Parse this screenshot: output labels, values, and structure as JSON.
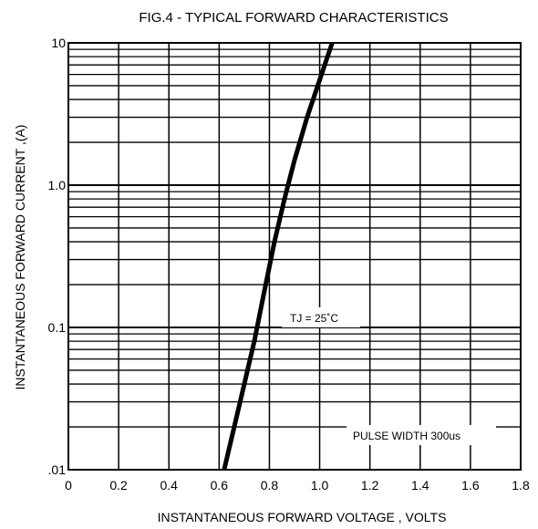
{
  "chart_data": {
    "type": "line",
    "title": "FIG.4 - TYPICAL FORWARD CHARACTERISTICS",
    "xlabel": "INSTANTANEOUS FORWARD VOLTAGE , VOLTS",
    "ylabel": "INSTANTANEOUS  FORWARD CURRENT ,(A)",
    "xlim": [
      0,
      1.8
    ],
    "ylim": [
      0.01,
      10
    ],
    "y_scale": "log",
    "grid": true,
    "x_ticks": [
      {
        "value": 0,
        "label": "0"
      },
      {
        "value": 0.2,
        "label": "0.2"
      },
      {
        "value": 0.4,
        "label": "0.4"
      },
      {
        "value": 0.6,
        "label": "0.6"
      },
      {
        "value": 0.8,
        "label": "0.8"
      },
      {
        "value": 1.0,
        "label": "1.0"
      },
      {
        "value": 1.2,
        "label": "1.2"
      },
      {
        "value": 1.4,
        "label": "1.4"
      },
      {
        "value": 1.6,
        "label": "1.6"
      },
      {
        "value": 1.8,
        "label": "1.8"
      }
    ],
    "y_ticks": [
      {
        "value": 0.01,
        "label": ".01"
      },
      {
        "value": 0.1,
        "label": "0.1"
      },
      {
        "value": 1,
        "label": "1.0"
      },
      {
        "value": 10,
        "label": "10"
      }
    ],
    "series": [
      {
        "x": [
          0.62,
          0.66,
          0.7,
          0.74,
          0.78,
          0.82,
          0.86,
          0.9,
          0.95,
          1.0,
          1.05
        ],
        "y": [
          0.01,
          0.02,
          0.04,
          0.08,
          0.18,
          0.4,
          0.8,
          1.5,
          3.0,
          5.5,
          10.0
        ]
      }
    ],
    "annotations": [
      {
        "text": "TJ = 25˚C",
        "x": 1.1,
        "y": 0.13
      },
      {
        "text": "PULSE WIDTH 300us",
        "x": 1.5,
        "y": 0.015
      }
    ]
  }
}
